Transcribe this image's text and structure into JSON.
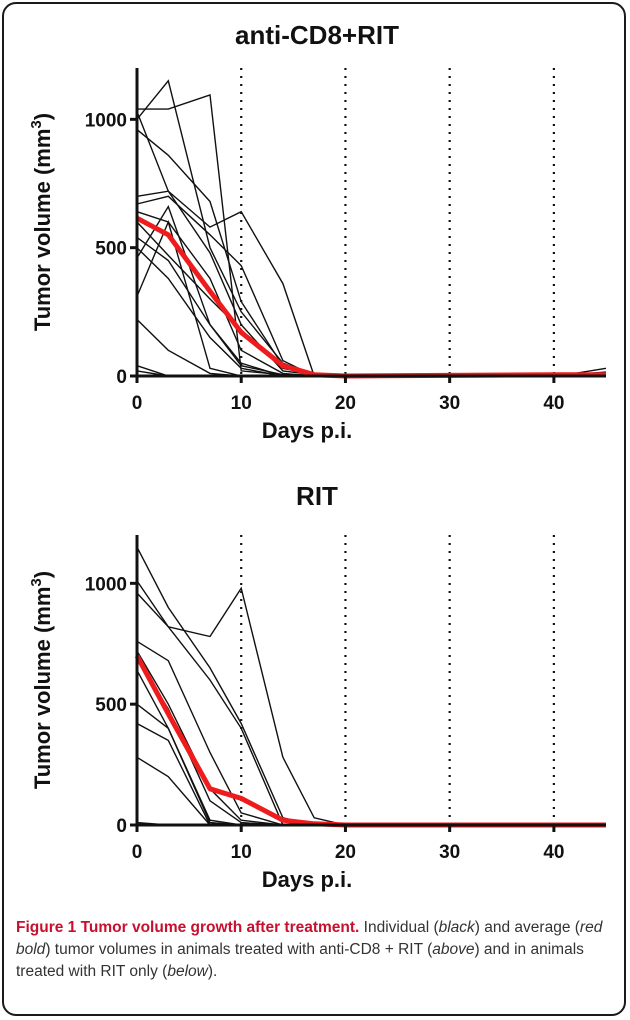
{
  "chart_data": [
    {
      "type": "line",
      "title": "anti-CD8+RIT",
      "xlabel": "Days p.i.",
      "ylabel": "Tumor volume (mm",
      "ylabel_sup": "3",
      "ylabel_close": ")",
      "xlim": [
        0,
        45
      ],
      "ylim": [
        0,
        1200
      ],
      "xticks": [
        0,
        10,
        20,
        30,
        40
      ],
      "yticks": [
        0,
        500,
        1000
      ],
      "vertical_dotted_lines": [
        10,
        20,
        30,
        40
      ],
      "individual_color": "#000000",
      "mean_color": "#ff0000",
      "series": [
        {
          "values": [
            [
              0,
              1040
            ],
            [
              3,
              1040
            ],
            [
              7,
              1095
            ],
            [
              10,
              20
            ],
            [
              14,
              5
            ],
            [
              17,
              0
            ],
            [
              45,
              0
            ]
          ]
        },
        {
          "values": [
            [
              0,
              1030
            ],
            [
              3,
              720
            ],
            [
              7,
              480
            ],
            [
              10,
              200
            ],
            [
              14,
              20
            ],
            [
              17,
              5
            ],
            [
              45,
              0
            ]
          ]
        },
        {
          "values": [
            [
              0,
              1000
            ],
            [
              3,
              1150
            ],
            [
              7,
              500
            ],
            [
              10,
              250
            ],
            [
              14,
              50
            ],
            [
              17,
              5
            ],
            [
              45,
              0
            ]
          ]
        },
        {
          "values": [
            [
              0,
              960
            ],
            [
              3,
              860
            ],
            [
              7,
              680
            ],
            [
              10,
              290
            ],
            [
              14,
              40
            ],
            [
              17,
              5
            ],
            [
              45,
              0
            ]
          ]
        },
        {
          "values": [
            [
              0,
              700
            ],
            [
              3,
              720
            ],
            [
              7,
              580
            ],
            [
              10,
              640
            ],
            [
              14,
              360
            ],
            [
              17,
              0
            ],
            [
              45,
              0
            ]
          ]
        },
        {
          "values": [
            [
              0,
              670
            ],
            [
              3,
              700
            ],
            [
              7,
              550
            ],
            [
              10,
              430
            ],
            [
              14,
              60
            ],
            [
              17,
              0
            ],
            [
              45,
              0
            ]
          ]
        },
        {
          "values": [
            [
              0,
              640
            ],
            [
              3,
              600
            ],
            [
              7,
              380
            ],
            [
              10,
              100
            ],
            [
              14,
              10
            ],
            [
              17,
              0
            ],
            [
              45,
              0
            ]
          ]
        },
        {
          "values": [
            [
              0,
              600
            ],
            [
              3,
              470
            ],
            [
              7,
              300
            ],
            [
              10,
              180
            ],
            [
              14,
              30
            ],
            [
              17,
              5
            ],
            [
              45,
              0
            ]
          ]
        },
        {
          "values": [
            [
              0,
              540
            ],
            [
              3,
              450
            ],
            [
              7,
              200
            ],
            [
              10,
              50
            ],
            [
              14,
              0
            ],
            [
              45,
              0
            ]
          ]
        },
        {
          "values": [
            [
              0,
              500
            ],
            [
              3,
              380
            ],
            [
              7,
              150
            ],
            [
              10,
              30
            ],
            [
              14,
              0
            ],
            [
              45,
              0
            ]
          ]
        },
        {
          "values": [
            [
              0,
              460
            ],
            [
              3,
              660
            ],
            [
              7,
              200
            ],
            [
              10,
              40
            ],
            [
              14,
              5
            ],
            [
              45,
              0
            ]
          ]
        },
        {
          "values": [
            [
              0,
              310
            ],
            [
              3,
              600
            ],
            [
              7,
              30
            ],
            [
              10,
              0
            ],
            [
              45,
              0
            ]
          ]
        },
        {
          "values": [
            [
              0,
              220
            ],
            [
              3,
              100
            ],
            [
              7,
              10
            ],
            [
              10,
              0
            ],
            [
              45,
              0
            ]
          ]
        },
        {
          "values": [
            [
              0,
              40
            ],
            [
              3,
              0
            ],
            [
              10,
              0
            ],
            [
              38,
              0
            ],
            [
              42,
              10
            ],
            [
              45,
              30
            ]
          ]
        },
        {
          "values": [
            [
              0,
              20
            ],
            [
              3,
              0
            ],
            [
              10,
              0
            ],
            [
              40,
              0
            ],
            [
              45,
              15
            ]
          ]
        }
      ],
      "mean": {
        "name": "average",
        "values": [
          [
            0,
            615
          ],
          [
            3,
            550
          ],
          [
            7,
            330
          ],
          [
            10,
            170
          ],
          [
            14,
            40
          ],
          [
            17,
            5
          ],
          [
            20,
            0
          ],
          [
            40,
            5
          ],
          [
            45,
            5
          ]
        ]
      }
    },
    {
      "type": "line",
      "title": "RIT",
      "xlabel": "Days p.i.",
      "ylabel": "Tumor volume (mm",
      "ylabel_sup": "3",
      "ylabel_close": ")",
      "xlim": [
        0,
        45
      ],
      "ylim": [
        0,
        1200
      ],
      "xticks": [
        0,
        10,
        20,
        30,
        40
      ],
      "yticks": [
        0,
        500,
        1000
      ],
      "vertical_dotted_lines": [
        10,
        20,
        30,
        40
      ],
      "individual_color": "#000000",
      "mean_color": "#ff0000",
      "series": [
        {
          "values": [
            [
              0,
              1150
            ],
            [
              3,
              900
            ],
            [
              7,
              650
            ],
            [
              10,
              420
            ],
            [
              14,
              30
            ],
            [
              17,
              0
            ],
            [
              45,
              0
            ]
          ]
        },
        {
          "values": [
            [
              0,
              1010
            ],
            [
              3,
              820
            ],
            [
              7,
              780
            ],
            [
              10,
              980
            ],
            [
              14,
              280
            ],
            [
              17,
              30
            ],
            [
              20,
              0
            ],
            [
              45,
              0
            ]
          ]
        },
        {
          "values": [
            [
              0,
              960
            ],
            [
              3,
              820
            ],
            [
              7,
              600
            ],
            [
              10,
              400
            ],
            [
              14,
              0
            ],
            [
              45,
              0
            ]
          ]
        },
        {
          "values": [
            [
              0,
              760
            ],
            [
              3,
              680
            ],
            [
              7,
              300
            ],
            [
              10,
              50
            ],
            [
              14,
              0
            ],
            [
              45,
              0
            ]
          ]
        },
        {
          "values": [
            [
              0,
              720
            ],
            [
              3,
              500
            ],
            [
              7,
              150
            ],
            [
              10,
              20
            ],
            [
              14,
              0
            ],
            [
              45,
              0
            ]
          ]
        },
        {
          "values": [
            [
              0,
              690
            ],
            [
              3,
              480
            ],
            [
              7,
              100
            ],
            [
              10,
              10
            ],
            [
              14,
              0
            ],
            [
              45,
              0
            ]
          ]
        },
        {
          "values": [
            [
              0,
              640
            ],
            [
              3,
              400
            ],
            [
              7,
              20
            ],
            [
              10,
              0
            ],
            [
              45,
              0
            ]
          ]
        },
        {
          "values": [
            [
              0,
              500
            ],
            [
              3,
              400
            ],
            [
              7,
              10
            ],
            [
              10,
              0
            ],
            [
              45,
              0
            ]
          ]
        },
        {
          "values": [
            [
              0,
              420
            ],
            [
              3,
              350
            ],
            [
              7,
              0
            ],
            [
              45,
              0
            ]
          ]
        },
        {
          "values": [
            [
              0,
              280
            ],
            [
              3,
              200
            ],
            [
              7,
              0
            ],
            [
              45,
              0
            ]
          ]
        },
        {
          "values": [
            [
              0,
              10
            ],
            [
              3,
              0
            ],
            [
              45,
              0
            ]
          ]
        }
      ],
      "mean": {
        "name": "average",
        "values": [
          [
            0,
            700
          ],
          [
            3,
            460
          ],
          [
            7,
            150
          ],
          [
            10,
            110
          ],
          [
            14,
            20
          ],
          [
            17,
            5
          ],
          [
            20,
            0
          ],
          [
            45,
            0
          ]
        ]
      }
    }
  ],
  "caption": {
    "title": "Figure 1 Tumor volume growth after treatment.",
    "text_1": " Individual (",
    "black": "black",
    "text_2": ") and average (",
    "red_bold": "red bold",
    "text_3": ") tumor volumes in animals treated with anti-CD8 + RIT (",
    "above": "above",
    "text_4": ") and in animals treated with RIT only (",
    "below": "below",
    "text_5": ")."
  }
}
